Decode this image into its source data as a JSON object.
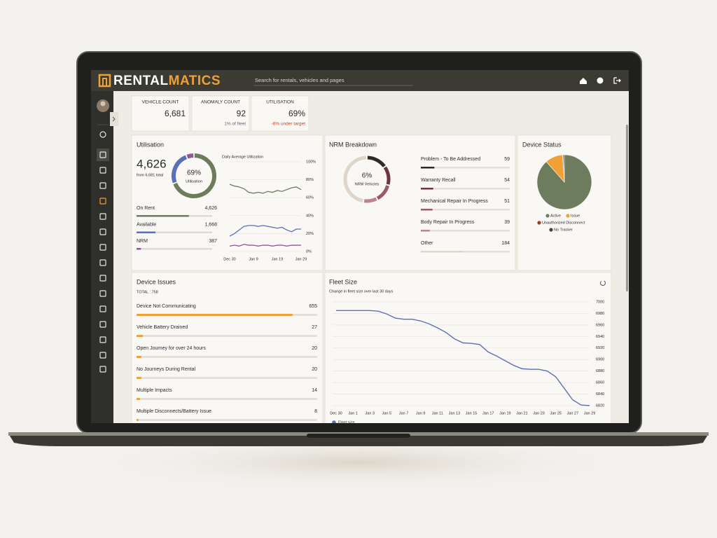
{
  "header": {
    "logo_a": "RENTAL",
    "logo_b": "MATICS",
    "search_placeholder": "Search for rentals, vehicles and pages"
  },
  "kpis": [
    {
      "label": "VEHICLE COUNT",
      "value": "6,681"
    },
    {
      "label": "ANOMALY COUNT",
      "value": "92",
      "note": "1% of fleet"
    },
    {
      "label": "UTILISATION",
      "value": "69%",
      "note": "-6% under target"
    }
  ],
  "utilisation": {
    "title": "Utilisation",
    "total": "4,626",
    "subtitle": "from 6,681 total",
    "donut_value": "69%",
    "donut_label": "Utilisation",
    "items": [
      {
        "name": "On Rent",
        "value": 4626,
        "label": "4,626",
        "color": "#6c7c5c"
      },
      {
        "name": "Available",
        "value": 1668,
        "label": "1,668",
        "color": "#5a72b5"
      },
      {
        "name": "NRM",
        "value": 387,
        "color": "#8b5a8f"
      }
    ],
    "daily": {
      "title": "Daily Average Utilization",
      "categories": [
        "Dec 30",
        null,
        null,
        null,
        null,
        "Jan 9",
        null,
        null,
        null,
        null,
        "Jan 19",
        null,
        null,
        null,
        null,
        "Jan 29"
      ],
      "ylim": [
        0,
        100
      ],
      "yticks": [
        {
          "value": 0,
          "label": "0%"
        },
        {
          "value": 20,
          "label": "20%"
        },
        {
          "value": 40,
          "label": "40%"
        },
        {
          "value": 60,
          "label": "60%"
        },
        {
          "value": 80,
          "label": "80%"
        },
        {
          "value": 100,
          "label": "100%"
        }
      ],
      "series": [
        {
          "color": "#6c7c5c",
          "values": [
            75,
            73,
            72,
            70,
            66,
            65,
            66,
            65,
            67,
            66,
            68,
            67,
            69,
            71,
            72,
            69
          ]
        },
        {
          "color": "#5a72b5",
          "values": [
            17,
            20,
            24,
            28,
            29,
            29,
            28,
            29,
            28,
            27,
            26,
            27,
            24,
            22,
            25,
            25
          ]
        },
        {
          "color": "#8b5a8f",
          "values": [
            6,
            7,
            6,
            8,
            7,
            7,
            6,
            7,
            7,
            6,
            7,
            7,
            6,
            7,
            7,
            7
          ]
        }
      ]
    }
  },
  "nrm": {
    "title": "NRM Breakdown",
    "donut_value": "6%",
    "donut_label": "NRM Vehicles",
    "items": [
      {
        "name": "Problem - To Be Addressed",
        "value": 59,
        "color": "#2f2a2a"
      },
      {
        "name": "Warranty Recall",
        "value": 54,
        "color": "#6e3440"
      },
      {
        "name": "Mechanical Repair In Progress",
        "value": 51,
        "color": "#9a5a6a"
      },
      {
        "name": "Body Repair In Progress",
        "value": 39,
        "color": "#b88592"
      },
      {
        "name": "Other",
        "value": 184,
        "color": "#ded6cb"
      }
    ]
  },
  "device_status": {
    "title": "Device Status",
    "items": [
      {
        "name": "Active",
        "value": 88.5,
        "color": "#6c7c5c"
      },
      {
        "name": "Issue",
        "value": 10.5,
        "color": "#f0a034"
      },
      {
        "name": "Unauthorized Disconnect",
        "value": 0.3,
        "color": "#9a3a2a"
      },
      {
        "name": "No Tracker",
        "value": 0.7,
        "color": "#45443d"
      }
    ]
  },
  "device_issues": {
    "title": "Device Issues",
    "total": {
      "value": 758,
      "label": "TOTAL : 758"
    },
    "color": "#f0a034",
    "items": [
      {
        "name": "Device Not Communicating",
        "value": 655
      },
      {
        "name": "Vehicle Battery Drained",
        "value": 27
      },
      {
        "name": "Open Journey for over 24 hours",
        "value": 20
      },
      {
        "name": "No Journeys During Rental",
        "value": 20
      },
      {
        "name": "Multiple Impacts",
        "value": 14
      },
      {
        "name": "Multiple Disconnects/Battery Issue",
        "value": 8
      }
    ]
  },
  "fleet_size": {
    "title": "Fleet Size",
    "subtitle": "Change in fleet size over last 30 days",
    "series_name": "Fleet size",
    "color": "#5a72b5",
    "categories": [
      "Dec 30",
      null,
      "Jan 1",
      null,
      "Jan 3",
      null,
      "Jan 5",
      null,
      "Jan 7",
      null,
      "Jan 9",
      null,
      "Jan 11",
      null,
      "Jan 13",
      null,
      "Jan 15",
      null,
      "Jan 17",
      null,
      "Jan 19",
      null,
      "Jan 21",
      null,
      "Jan 23",
      null,
      "Jan 25",
      null,
      "Jan 27",
      null,
      "Jan 29"
    ],
    "values": [
      6985,
      6985,
      6985,
      6985,
      6985,
      6984,
      6979,
      6972,
      6970,
      6970,
      6967,
      6962,
      6955,
      6947,
      6936,
      6929,
      6928,
      6926,
      6913,
      6906,
      6898,
      6890,
      6884,
      6883,
      6883,
      6880,
      6870,
      6850,
      6830,
      6821,
      6820
    ],
    "ylim": [
      6820,
      7000
    ],
    "yticks": [
      6820,
      6840,
      6860,
      6880,
      6900,
      6920,
      6940,
      6960,
      6980,
      7000
    ]
  }
}
